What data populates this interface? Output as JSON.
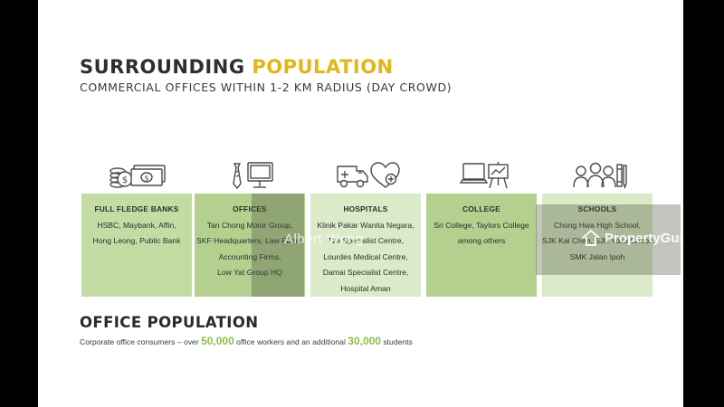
{
  "slide": {
    "title_main": "SURROUNDING",
    "title_highlight": "POPULATION",
    "subtitle": "COMMERCIAL OFFICES WITHIN 1-2 KM RADIUS (DAY CROWD)"
  },
  "categories": [
    {
      "icon": "money-coins-icon",
      "heading": "FULL FLEDGE BANKS",
      "lines": [
        "HSBC, Maybank, Affin,",
        "Hong Leong, Public Bank"
      ]
    },
    {
      "icon": "office-tie-monitor-icon",
      "heading": "OFFICES",
      "lines": [
        "Tan Chong Motor Group,",
        "SKF Headquarters, Law Firms,",
        "Accounting Firms,",
        "Low Yat Group HQ"
      ]
    },
    {
      "icon": "ambulance-heart-icon",
      "heading": "HOSPITALS",
      "lines": [
        "Klinik Pakar Wanita Negara,",
        "Tze Specialist Centre,",
        "Lourdes Medical Centre,",
        "Damai Specialist Centre,",
        "Hospital Aman"
      ]
    },
    {
      "icon": "laptop-presentation-icon",
      "heading": "COLLEGE",
      "lines": [
        "Sri College, Taylors College",
        "among others"
      ]
    },
    {
      "icon": "students-books-icon",
      "heading": "SCHOOLS",
      "lines": [
        "Chong Hwa High School,",
        "SJK Kai Chee, SJK Yoke Choon,",
        "SMK Jalan Ipoh"
      ]
    }
  ],
  "office_population": {
    "title": "OFFICE POPULATION",
    "text_1": "Corporate office  consumers – over ",
    "num_1": "50,000",
    "text_2": " office workers and an additional ",
    "num_2": "30,000",
    "text_3": " students"
  },
  "watermarks": {
    "agent_name": "Albert Wong",
    "brand": "PropertyGuru"
  },
  "colors": {
    "highlight": "#e2b619",
    "number_green": "#8dbe4c",
    "box_light": "#dbeac8",
    "box_mid": "#b4d08f"
  }
}
